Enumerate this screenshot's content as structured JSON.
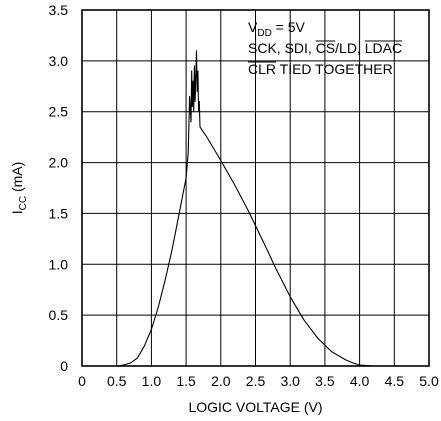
{
  "chart_data": {
    "type": "line",
    "xlabel": "LOGIC VOLTAGE (V)",
    "ylabel_main": "I",
    "ylabel_sub": "CC",
    "ylabel_unit": " (mA)",
    "xlim": [
      0,
      5
    ],
    "ylim": [
      0,
      3.5
    ],
    "grid": true,
    "x_ticks": [
      "0",
      "0.5",
      "1.0",
      "1.5",
      "2.0",
      "2.5",
      "3.0",
      "3.5",
      "4.0",
      "4.5",
      "5.0"
    ],
    "y_ticks": [
      "0",
      "0.5",
      "1.0",
      "1.5",
      "2.0",
      "2.5",
      "3.0",
      "3.5"
    ],
    "annotation": {
      "l1_main": "V",
      "l1_sub": "DD",
      "l1_rest": " = 5V",
      "l2_a": "SCK, SDI, ",
      "l2_b": "CS",
      "l2_c": "/LD, ",
      "l2_d": "LDAC",
      "l3_a": "CLR",
      "l3_b": " TIED TOGETHER"
    },
    "series": [
      {
        "x": [
          0.5,
          0.6,
          0.7,
          0.8,
          0.9,
          1.0,
          1.1,
          1.2,
          1.3,
          1.4,
          1.5,
          1.53,
          1.55,
          1.57,
          1.58,
          1.59,
          1.6,
          1.61,
          1.62,
          1.63,
          1.64,
          1.65,
          1.66,
          1.67,
          1.68,
          1.69,
          1.7,
          1.75,
          1.8,
          2.0,
          2.2,
          2.4,
          2.6,
          2.8,
          3.0,
          3.2,
          3.4,
          3.6,
          3.8,
          3.9,
          4.0,
          4.1,
          4.2,
          4.25
        ],
        "y": [
          0,
          0.01,
          0.03,
          0.08,
          0.2,
          0.36,
          0.58,
          0.85,
          1.15,
          1.5,
          1.85,
          2.1,
          2.65,
          2.4,
          2.9,
          2.55,
          2.8,
          2.5,
          2.95,
          2.6,
          2.85,
          3.1,
          2.7,
          2.9,
          2.5,
          2.6,
          2.35,
          2.3,
          2.25,
          2.02,
          1.78,
          1.52,
          1.24,
          0.95,
          0.68,
          0.45,
          0.27,
          0.14,
          0.06,
          0.03,
          0.01,
          0.005,
          0,
          0
        ]
      }
    ]
  }
}
